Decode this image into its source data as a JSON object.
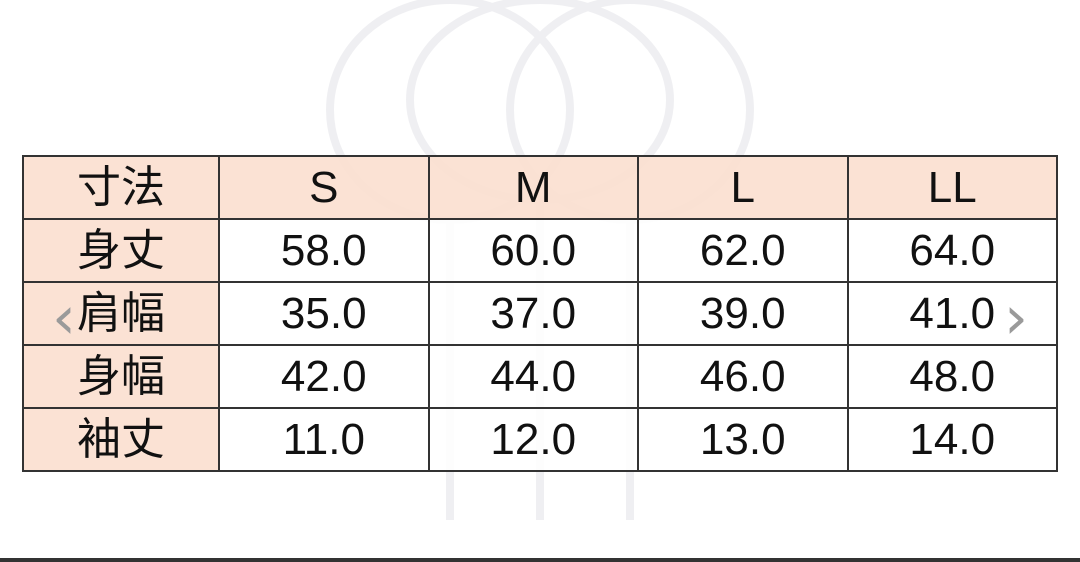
{
  "table": {
    "header": [
      "寸法",
      "S",
      "M",
      "L",
      "LL"
    ],
    "rows": [
      {
        "label": "身丈",
        "values": [
          "58.0",
          "60.0",
          "62.0",
          "64.0"
        ]
      },
      {
        "label": "肩幅",
        "values": [
          "35.0",
          "37.0",
          "39.0",
          "41.0"
        ]
      },
      {
        "label": "身幅",
        "values": [
          "42.0",
          "44.0",
          "46.0",
          "48.0"
        ]
      },
      {
        "label": "袖丈",
        "values": [
          "11.0",
          "12.0",
          "13.0",
          "14.0"
        ]
      }
    ]
  },
  "carousel": {
    "prev_icon": "chevron-left-icon",
    "next_icon": "chevron-right-icon"
  },
  "colors": {
    "header_bg": "#fbe0d0",
    "border": "#333333"
  }
}
